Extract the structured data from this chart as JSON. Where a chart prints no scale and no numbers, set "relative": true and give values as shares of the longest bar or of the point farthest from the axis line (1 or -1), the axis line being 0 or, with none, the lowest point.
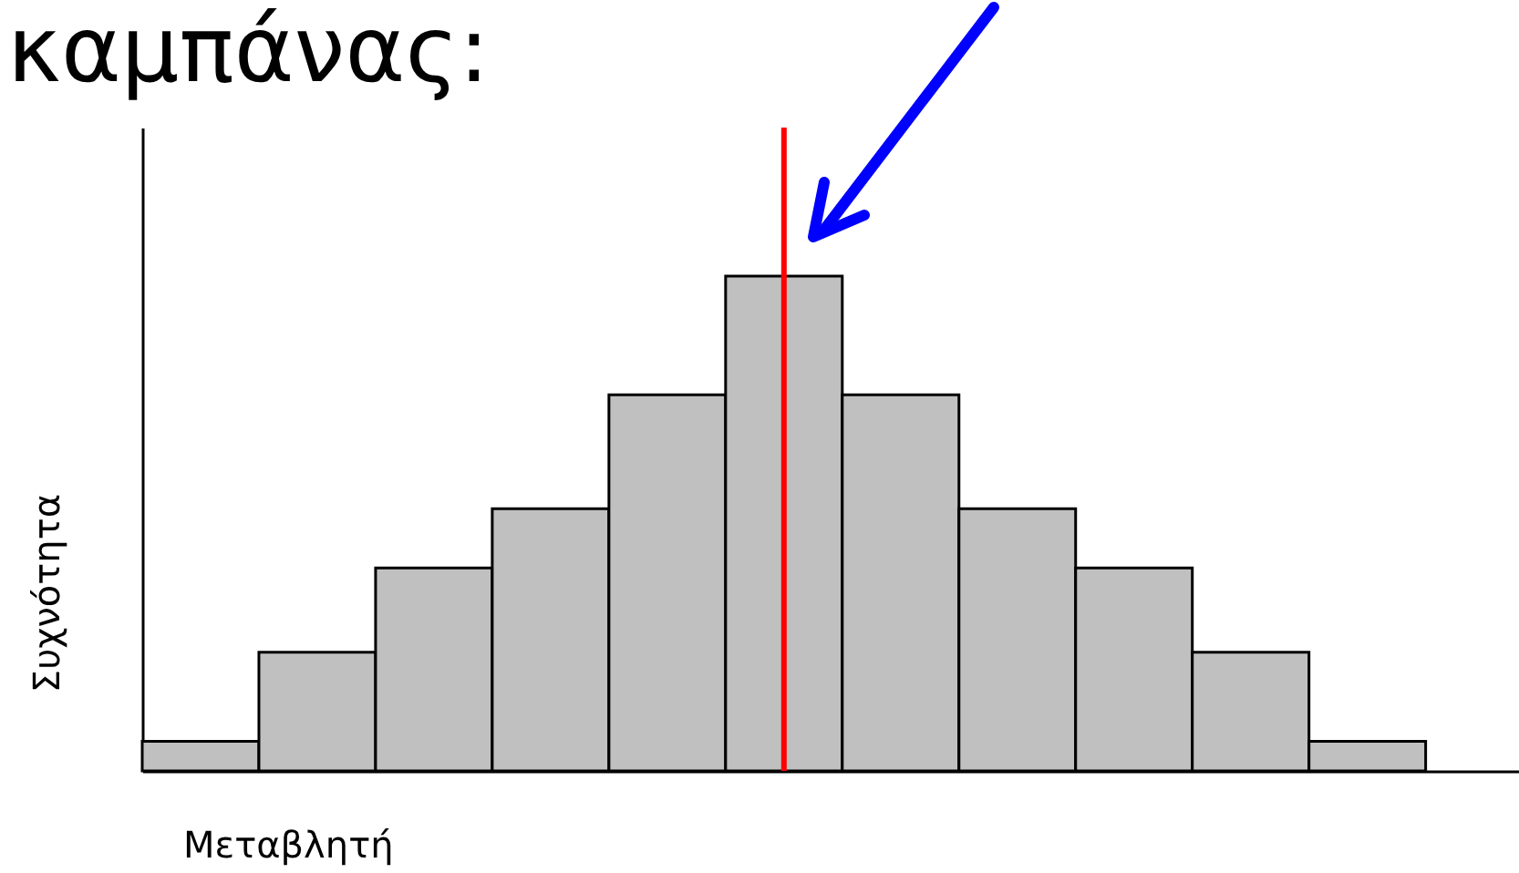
{
  "chart_data": {
    "type": "bar",
    "title": "καμπάνας:",
    "xlabel": "Μεταβλητή",
    "ylabel": "Συχνότητα",
    "relative": true,
    "categories": [
      null,
      null,
      null,
      null,
      null,
      null,
      null,
      null,
      null,
      null,
      null
    ],
    "values": [
      0.06,
      0.24,
      0.41,
      0.53,
      0.76,
      1,
      0.76,
      0.53,
      0.41,
      0.24,
      0.06
    ],
    "color": "#c0c0c0"
  }
}
